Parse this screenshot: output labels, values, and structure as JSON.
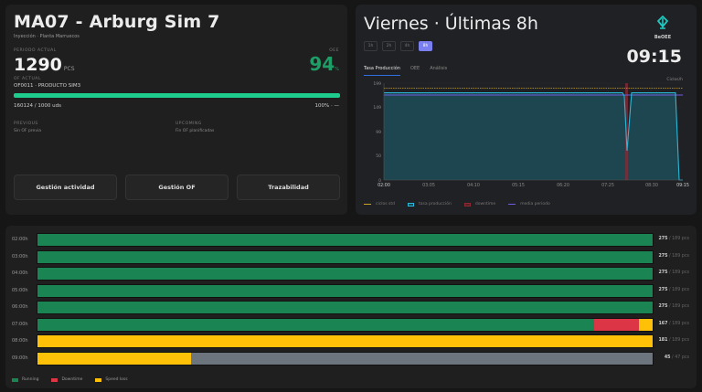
{
  "machine": {
    "title": "MA07 - Arburg Sim 7",
    "subtitle": "Inyección · Planta Marruecos",
    "periodo_label": "PERIODO ACTUAL",
    "count": "1290",
    "count_unit": "PCS",
    "oee_label": "OEE",
    "oee_value": "94",
    "oee_unit": "%",
    "of_label": "OF ACTUAL",
    "of_value": "OF0011 · PRODUCTO SIM3",
    "progress_percent": 100,
    "progress_left": "160124 / 1000 uds",
    "progress_right": "100% · —",
    "previous_label": "PREVIOUS",
    "previous_value": "Sin OF previa",
    "upcoming_label": "UPCOMING",
    "upcoming_value": "Fin OF planificadas",
    "colors": {
      "oee": "#1f9d66",
      "progress": "#1ecc8e"
    }
  },
  "actions": [
    {
      "label": "Gestión actividad"
    },
    {
      "label": "Gestión OF"
    },
    {
      "label": "Trazabilidad"
    }
  ],
  "header": {
    "title": "Viernes · Últimas 8h",
    "range_chips": [
      {
        "label": "1h",
        "active": false
      },
      {
        "label": "2h",
        "active": false
      },
      {
        "label": "4h",
        "active": false
      },
      {
        "label": "8h",
        "active": true
      }
    ],
    "tabs": [
      {
        "label": "Tasa Producción",
        "active": true
      },
      {
        "label": "OEE",
        "active": false
      },
      {
        "label": "Análisis",
        "active": false
      }
    ],
    "brand": "BeOEE",
    "clock": "09:15",
    "brand_color": "#1ec8c0"
  },
  "chart_data": {
    "type": "area",
    "title": "Tasa Producción",
    "xlabel": "",
    "ylabel": "Ciclos/h",
    "x_ticks": [
      "02:00",
      "03:05",
      "04:10",
      "05:15",
      "06:20",
      "07:25",
      "08:30",
      "09:15"
    ],
    "y_ticks": [
      0,
      50,
      99,
      149,
      199
    ],
    "ylim": [
      0,
      199
    ],
    "grid": true,
    "legend_position": "bottom",
    "series": [
      {
        "name": "tasa producción",
        "color": "#2ab8d8",
        "points": [
          [
            "02:00",
            176
          ],
          [
            "07:30",
            176
          ],
          [
            "07:33",
            170
          ],
          [
            "07:38",
            60
          ],
          [
            "07:42",
            176
          ],
          [
            "09:05",
            176
          ],
          [
            "09:10",
            0
          ],
          [
            "09:15",
            0
          ]
        ]
      },
      {
        "name": "ciclos std",
        "color": "#c9a227",
        "style": "dashed",
        "value": 189
      },
      {
        "name": "media periodo",
        "color": "#6e5ce0",
        "value": 172
      },
      {
        "name": "downtime",
        "color": "#8a2a35",
        "range": [
          "07:36",
          "07:40"
        ]
      }
    ],
    "legend": [
      "ciclos std",
      "tasa producción",
      "downtime",
      "media periodo"
    ]
  },
  "timeline": {
    "rows": [
      {
        "hour": "02:00h",
        "segments": [
          {
            "state": "running",
            "pct": 100
          }
        ],
        "value": "275",
        "target": "/ 189 pcs"
      },
      {
        "hour": "03:00h",
        "segments": [
          {
            "state": "running",
            "pct": 100
          }
        ],
        "value": "275",
        "target": "/ 189 pcs"
      },
      {
        "hour": "04:00h",
        "segments": [
          {
            "state": "running",
            "pct": 100
          }
        ],
        "value": "275",
        "target": "/ 189 pcs"
      },
      {
        "hour": "05:00h",
        "segments": [
          {
            "state": "running",
            "pct": 100
          }
        ],
        "value": "275",
        "target": "/ 189 pcs"
      },
      {
        "hour": "06:00h",
        "segments": [
          {
            "state": "running",
            "pct": 100
          }
        ],
        "value": "275",
        "target": "/ 189 pcs"
      },
      {
        "hour": "07:00h",
        "segments": [
          {
            "state": "running",
            "pct": 90.5
          },
          {
            "state": "downtime",
            "pct": 7.2
          },
          {
            "state": "speed",
            "pct": 2.3
          }
        ],
        "value": "167",
        "target": "/ 189 pcs"
      },
      {
        "hour": "08:00h",
        "segments": [
          {
            "state": "speed",
            "pct": 100
          }
        ],
        "value": "181",
        "target": "/ 189 pcs"
      },
      {
        "hour": "09:00h",
        "segments": [
          {
            "state": "speed",
            "pct": 25
          },
          {
            "state": "idle",
            "pct": 75
          }
        ],
        "value": "45",
        "target": "/ 47 pcs"
      }
    ],
    "legend": [
      {
        "label": "Running",
        "color": "#1a8553"
      },
      {
        "label": "Downtime",
        "color": "#dc3545"
      },
      {
        "label": "Speed loss",
        "color": "#ffc107"
      }
    ],
    "colors": {
      "running": "#1a8553",
      "downtime": "#dc3545",
      "speed": "#ffc107",
      "idle": "#6c757d"
    }
  }
}
